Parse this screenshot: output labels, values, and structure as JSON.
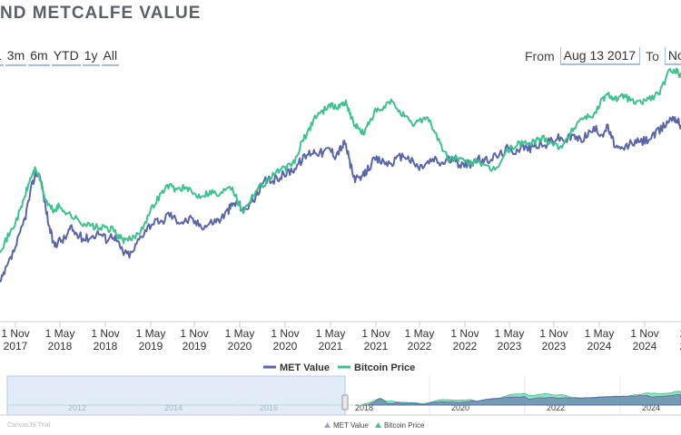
{
  "header": {
    "title": "ND METCALFE VALUE"
  },
  "range_selector": {
    "buttons": [
      "1",
      "3m",
      "6m",
      "YTD",
      "1y",
      "All"
    ]
  },
  "date_range": {
    "from_label": "From",
    "from_value": "Aug 13 2017",
    "to_label": "To",
    "to_value": "Nov"
  },
  "watermark": "CanvasJS Trial",
  "chart_data": {
    "type": "line",
    "title": "ND METCALFE VALUE",
    "x_ticks": [
      {
        "line1": "1 Nov",
        "line2": "2017"
      },
      {
        "line1": "1 May",
        "line2": "2018"
      },
      {
        "line1": "1 Nov",
        "line2": "2018"
      },
      {
        "line1": "1 May",
        "line2": "2019"
      },
      {
        "line1": "1 Nov",
        "line2": "2019"
      },
      {
        "line1": "1 May",
        "line2": "2020"
      },
      {
        "line1": "1 Nov",
        "line2": "2020"
      },
      {
        "line1": "1 May",
        "line2": "2021"
      },
      {
        "line1": "1 Nov",
        "line2": "2021"
      },
      {
        "line1": "1 May",
        "line2": "2022"
      },
      {
        "line1": "1 Nov",
        "line2": "2022"
      },
      {
        "line1": "1 May",
        "line2": "2023"
      },
      {
        "line1": "1 Nov",
        "line2": "2023"
      },
      {
        "line1": "1 May",
        "line2": "2024"
      },
      {
        "line1": "1 Nov",
        "line2": "2024"
      },
      {
        "line1": "2",
        "line2": "2"
      }
    ],
    "x_range": [
      2017.56,
      2025.0
    ],
    "y_scale": "log (unlabeled)",
    "y_range": [
      0,
      100
    ],
    "legend": {
      "position": "bottom",
      "entries": [
        "MET Value",
        "Bitcoin Price"
      ]
    },
    "series": [
      {
        "name": "MET Value",
        "color": "#5b66a8",
        "points": [
          [
            2017.56,
            10
          ],
          [
            2017.62,
            16
          ],
          [
            2017.7,
            24
          ],
          [
            2017.78,
            33
          ],
          [
            2017.84,
            42
          ],
          [
            2017.9,
            54
          ],
          [
            2017.95,
            62
          ],
          [
            2018.0,
            60
          ],
          [
            2018.05,
            48
          ],
          [
            2018.1,
            36
          ],
          [
            2018.15,
            28
          ],
          [
            2018.2,
            30
          ],
          [
            2018.27,
            31
          ],
          [
            2018.33,
            36
          ],
          [
            2018.4,
            33
          ],
          [
            2018.48,
            31
          ],
          [
            2018.56,
            32
          ],
          [
            2018.64,
            34
          ],
          [
            2018.72,
            31
          ],
          [
            2018.8,
            33
          ],
          [
            2018.86,
            28
          ],
          [
            2018.92,
            24
          ],
          [
            2019.0,
            24
          ],
          [
            2019.08,
            31
          ],
          [
            2019.16,
            36
          ],
          [
            2019.24,
            39
          ],
          [
            2019.32,
            38
          ],
          [
            2019.4,
            43
          ],
          [
            2019.48,
            40
          ],
          [
            2019.56,
            39
          ],
          [
            2019.64,
            40
          ],
          [
            2019.72,
            38
          ],
          [
            2019.8,
            37
          ],
          [
            2019.88,
            39
          ],
          [
            2019.96,
            40
          ],
          [
            2020.05,
            44
          ],
          [
            2020.1,
            47
          ],
          [
            2020.16,
            48
          ],
          [
            2020.22,
            44
          ],
          [
            2020.3,
            48
          ],
          [
            2020.38,
            52
          ],
          [
            2020.46,
            58
          ],
          [
            2020.54,
            58
          ],
          [
            2020.62,
            60
          ],
          [
            2020.7,
            62
          ],
          [
            2020.78,
            64
          ],
          [
            2020.86,
            68
          ],
          [
            2020.94,
            71
          ],
          [
            2021.0,
            72
          ],
          [
            2021.08,
            71
          ],
          [
            2021.16,
            73
          ],
          [
            2021.22,
            70
          ],
          [
            2021.28,
            73
          ],
          [
            2021.33,
            76
          ],
          [
            2021.38,
            67
          ],
          [
            2021.42,
            60
          ],
          [
            2021.48,
            58
          ],
          [
            2021.54,
            61
          ],
          [
            2021.6,
            65
          ],
          [
            2021.66,
            68
          ],
          [
            2021.74,
            67
          ],
          [
            2021.82,
            66
          ],
          [
            2021.9,
            68
          ],
          [
            2021.98,
            70
          ],
          [
            2022.06,
            67
          ],
          [
            2022.14,
            64
          ],
          [
            2022.22,
            66
          ],
          [
            2022.3,
            68
          ],
          [
            2022.38,
            66
          ],
          [
            2022.46,
            68
          ],
          [
            2022.54,
            67
          ],
          [
            2022.62,
            65
          ],
          [
            2022.7,
            66
          ],
          [
            2022.78,
            68
          ],
          [
            2022.86,
            67
          ],
          [
            2022.94,
            69
          ],
          [
            2023.02,
            70
          ],
          [
            2023.1,
            73
          ],
          [
            2023.18,
            72
          ],
          [
            2023.26,
            74
          ],
          [
            2023.34,
            73
          ],
          [
            2023.42,
            75
          ],
          [
            2023.5,
            74
          ],
          [
            2023.58,
            77
          ],
          [
            2023.66,
            78
          ],
          [
            2023.74,
            77
          ],
          [
            2023.82,
            79
          ],
          [
            2023.9,
            77
          ],
          [
            2023.98,
            80
          ],
          [
            2024.06,
            82
          ],
          [
            2024.14,
            80
          ],
          [
            2024.2,
            83
          ],
          [
            2024.26,
            76
          ],
          [
            2024.32,
            72
          ],
          [
            2024.38,
            73
          ],
          [
            2024.46,
            76
          ],
          [
            2024.54,
            76
          ],
          [
            2024.62,
            77
          ],
          [
            2024.7,
            79
          ],
          [
            2024.78,
            82
          ],
          [
            2024.86,
            86
          ],
          [
            2024.92,
            88
          ],
          [
            2024.96,
            86
          ],
          [
            2025.0,
            84
          ]
        ]
      },
      {
        "name": "Bitcoin Price",
        "color": "#3ec28f",
        "points": [
          [
            2017.56,
            26
          ],
          [
            2017.62,
            30
          ],
          [
            2017.7,
            36
          ],
          [
            2017.78,
            44
          ],
          [
            2017.84,
            52
          ],
          [
            2017.9,
            60
          ],
          [
            2017.95,
            64
          ],
          [
            2018.0,
            58
          ],
          [
            2018.05,
            50
          ],
          [
            2018.1,
            46
          ],
          [
            2018.15,
            44
          ],
          [
            2018.2,
            46
          ],
          [
            2018.27,
            44
          ],
          [
            2018.33,
            42
          ],
          [
            2018.4,
            40
          ],
          [
            2018.48,
            38
          ],
          [
            2018.56,
            37
          ],
          [
            2018.64,
            36
          ],
          [
            2018.72,
            36
          ],
          [
            2018.8,
            35
          ],
          [
            2018.86,
            32
          ],
          [
            2018.92,
            30
          ],
          [
            2019.0,
            31
          ],
          [
            2019.08,
            34
          ],
          [
            2019.16,
            40
          ],
          [
            2019.24,
            47
          ],
          [
            2019.32,
            52
          ],
          [
            2019.4,
            56
          ],
          [
            2019.48,
            54
          ],
          [
            2019.56,
            55
          ],
          [
            2019.64,
            53
          ],
          [
            2019.72,
            51
          ],
          [
            2019.8,
            52
          ],
          [
            2019.88,
            53
          ],
          [
            2019.96,
            51
          ],
          [
            2020.05,
            56
          ],
          [
            2020.1,
            55
          ],
          [
            2020.16,
            48
          ],
          [
            2020.22,
            44
          ],
          [
            2020.3,
            50
          ],
          [
            2020.38,
            55
          ],
          [
            2020.46,
            57
          ],
          [
            2020.54,
            61
          ],
          [
            2020.62,
            63
          ],
          [
            2020.7,
            64
          ],
          [
            2020.78,
            67
          ],
          [
            2020.86,
            76
          ],
          [
            2020.94,
            82
          ],
          [
            2021.0,
            88
          ],
          [
            2021.08,
            90
          ],
          [
            2021.16,
            94
          ],
          [
            2021.22,
            92
          ],
          [
            2021.28,
            93
          ],
          [
            2021.33,
            95
          ],
          [
            2021.38,
            90
          ],
          [
            2021.42,
            85
          ],
          [
            2021.48,
            82
          ],
          [
            2021.54,
            80
          ],
          [
            2021.6,
            86
          ],
          [
            2021.66,
            90
          ],
          [
            2021.74,
            91
          ],
          [
            2021.82,
            95
          ],
          [
            2021.9,
            92
          ],
          [
            2021.98,
            88
          ],
          [
            2022.06,
            84
          ],
          [
            2022.14,
            86
          ],
          [
            2022.22,
            88
          ],
          [
            2022.3,
            82
          ],
          [
            2022.38,
            74
          ],
          [
            2022.46,
            68
          ],
          [
            2022.54,
            69
          ],
          [
            2022.62,
            67
          ],
          [
            2022.7,
            66
          ],
          [
            2022.78,
            68
          ],
          [
            2022.86,
            64
          ],
          [
            2022.94,
            63
          ],
          [
            2023.02,
            66
          ],
          [
            2023.1,
            72
          ],
          [
            2023.18,
            74
          ],
          [
            2023.26,
            76
          ],
          [
            2023.34,
            75
          ],
          [
            2023.42,
            77
          ],
          [
            2023.5,
            78
          ],
          [
            2023.58,
            76
          ],
          [
            2023.66,
            74
          ],
          [
            2023.74,
            76
          ],
          [
            2023.82,
            82
          ],
          [
            2023.9,
            87
          ],
          [
            2023.98,
            88
          ],
          [
            2024.06,
            89
          ],
          [
            2024.14,
            96
          ],
          [
            2024.2,
            98
          ],
          [
            2024.26,
            97
          ],
          [
            2024.32,
            96
          ],
          [
            2024.38,
            98
          ],
          [
            2024.46,
            95
          ],
          [
            2024.54,
            94
          ],
          [
            2024.62,
            96
          ],
          [
            2024.7,
            97
          ],
          [
            2024.78,
            100
          ],
          [
            2024.86,
            108
          ],
          [
            2024.92,
            110
          ],
          [
            2024.96,
            109
          ],
          [
            2025.0,
            106
          ]
        ]
      }
    ],
    "navigator": {
      "year_labels": [
        "2012",
        "2014",
        "2016",
        "2018",
        "2020",
        "2022",
        "2024"
      ],
      "legend_entries": [
        "MET Value",
        "Bitcoin Price"
      ]
    }
  }
}
